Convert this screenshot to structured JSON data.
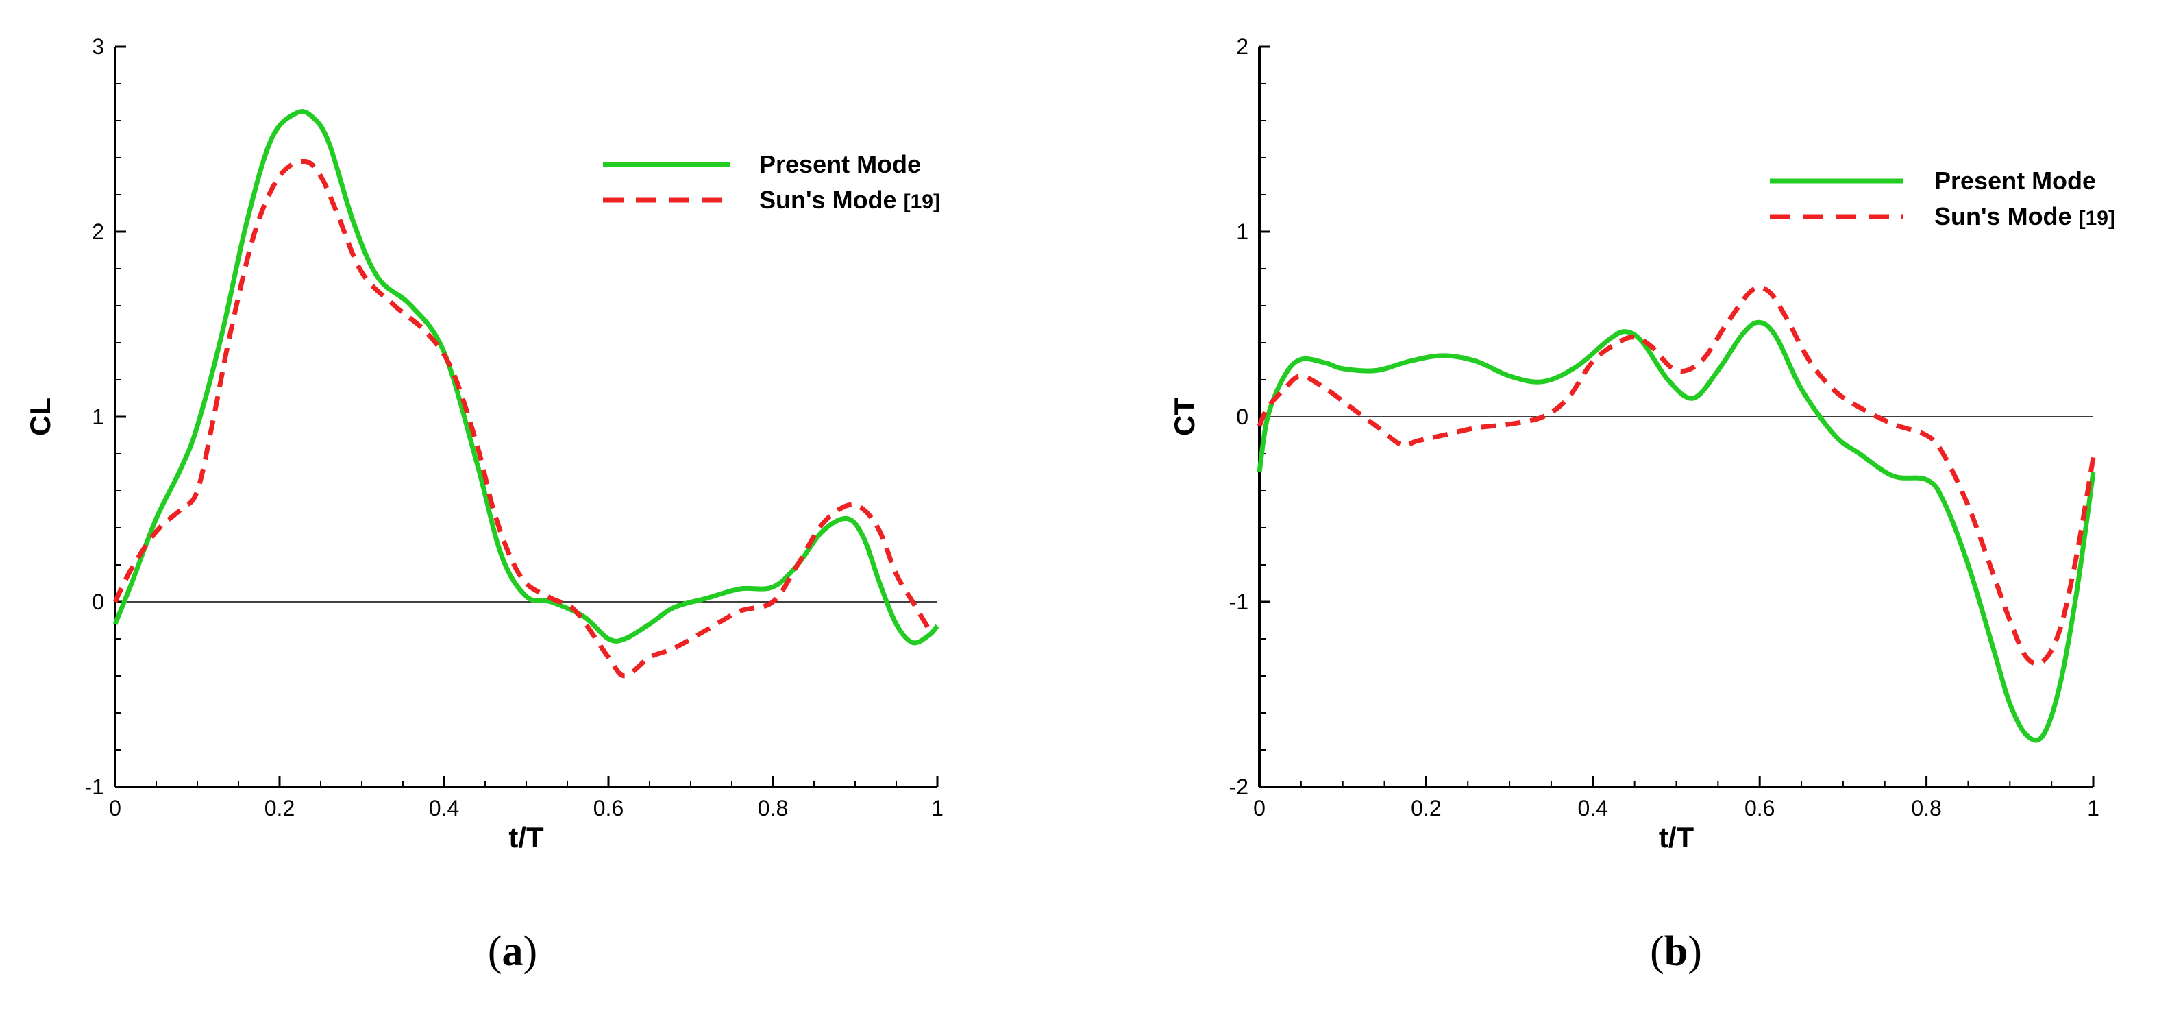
{
  "chart_data": [
    {
      "type": "line",
      "caption": "(a)",
      "caption_letter": "a",
      "xlabel": "t/T",
      "ylabel": "CL",
      "xlim": [
        0,
        1
      ],
      "ylim": [
        -1,
        3
      ],
      "x_ticks": [
        0,
        0.2,
        0.4,
        0.6,
        0.8,
        1
      ],
      "x_tick_labels": [
        "0",
        "0.2",
        "0.4",
        "0.6",
        "0.8",
        "1"
      ],
      "y_ticks": [
        -1,
        0,
        1,
        2,
        3
      ],
      "y_tick_labels": [
        "-1",
        "0",
        "1",
        "2",
        "3"
      ],
      "legend": "top-right",
      "series": [
        {
          "name": "Present Mode",
          "ref": "",
          "color": "#22cc22",
          "style": "solid",
          "x": [
            0,
            0.02,
            0.05,
            0.08,
            0.1,
            0.13,
            0.16,
            0.19,
            0.22,
            0.24,
            0.26,
            0.29,
            0.32,
            0.36,
            0.4,
            0.44,
            0.47,
            0.5,
            0.53,
            0.57,
            0.6,
            0.62,
            0.65,
            0.68,
            0.72,
            0.76,
            0.8,
            0.83,
            0.86,
            0.89,
            0.91,
            0.93,
            0.95,
            0.97,
            0.99,
            1.0
          ],
          "y": [
            -0.12,
            0.1,
            0.45,
            0.72,
            0.95,
            1.45,
            2.05,
            2.5,
            2.64,
            2.62,
            2.48,
            2.05,
            1.75,
            1.6,
            1.35,
            0.75,
            0.25,
            0.03,
            0.0,
            -0.08,
            -0.2,
            -0.2,
            -0.12,
            -0.03,
            0.02,
            0.07,
            0.08,
            0.2,
            0.38,
            0.45,
            0.35,
            0.1,
            -0.12,
            -0.22,
            -0.18,
            -0.13
          ]
        },
        {
          "name": "Sun's Mode",
          "ref": "[19]",
          "color": "#ee2222",
          "style": "dashed",
          "x": [
            0,
            0.02,
            0.05,
            0.08,
            0.1,
            0.12,
            0.14,
            0.17,
            0.2,
            0.23,
            0.25,
            0.27,
            0.3,
            0.34,
            0.38,
            0.41,
            0.44,
            0.46,
            0.48,
            0.5,
            0.53,
            0.56,
            0.6,
            0.62,
            0.65,
            0.68,
            0.72,
            0.76,
            0.8,
            0.83,
            0.86,
            0.89,
            0.91,
            0.93,
            0.95,
            0.97,
            0.99
          ],
          "y": [
            0.0,
            0.18,
            0.38,
            0.5,
            0.6,
            1.0,
            1.45,
            2.0,
            2.3,
            2.38,
            2.3,
            2.1,
            1.78,
            1.6,
            1.45,
            1.25,
            0.85,
            0.5,
            0.25,
            0.1,
            0.02,
            -0.05,
            -0.3,
            -0.4,
            -0.3,
            -0.25,
            -0.15,
            -0.05,
            0.0,
            0.2,
            0.42,
            0.52,
            0.5,
            0.38,
            0.15,
            0.0,
            -0.15
          ]
        }
      ]
    },
    {
      "type": "line",
      "caption": "(b)",
      "caption_letter": "b",
      "xlabel": "t/T",
      "ylabel": "CT",
      "xlim": [
        0,
        1
      ],
      "ylim": [
        -2,
        2
      ],
      "x_ticks": [
        0,
        0.2,
        0.4,
        0.6,
        0.8,
        1
      ],
      "x_tick_labels": [
        "0",
        "0.2",
        "0.4",
        "0.6",
        "0.8",
        "1"
      ],
      "y_ticks": [
        -2,
        -1,
        0,
        1,
        2
      ],
      "y_tick_labels": [
        "-2",
        "-1",
        "0",
        "1",
        "2"
      ],
      "legend": "top-right",
      "series": [
        {
          "name": "Present Mode",
          "ref": "",
          "color": "#22cc22",
          "style": "solid",
          "x": [
            0,
            0.01,
            0.03,
            0.05,
            0.08,
            0.1,
            0.14,
            0.18,
            0.22,
            0.26,
            0.3,
            0.34,
            0.38,
            0.42,
            0.44,
            0.46,
            0.49,
            0.52,
            0.55,
            0.58,
            0.6,
            0.62,
            0.65,
            0.69,
            0.72,
            0.76,
            0.8,
            0.82,
            0.85,
            0.88,
            0.9,
            0.92,
            0.94,
            0.96,
            0.98,
            1.0
          ],
          "y": [
            -0.3,
            0.0,
            0.22,
            0.31,
            0.29,
            0.26,
            0.25,
            0.3,
            0.33,
            0.3,
            0.22,
            0.19,
            0.27,
            0.42,
            0.46,
            0.4,
            0.2,
            0.1,
            0.25,
            0.45,
            0.51,
            0.43,
            0.15,
            -0.1,
            -0.2,
            -0.32,
            -0.34,
            -0.45,
            -0.8,
            -1.25,
            -1.55,
            -1.72,
            -1.72,
            -1.45,
            -0.95,
            -0.3
          ]
        },
        {
          "name": "Sun's Mode",
          "ref": "[19]",
          "color": "#ee2222",
          "style": "dashed",
          "x": [
            0,
            0.01,
            0.03,
            0.05,
            0.08,
            0.11,
            0.14,
            0.17,
            0.19,
            0.22,
            0.26,
            0.3,
            0.34,
            0.37,
            0.4,
            0.43,
            0.45,
            0.47,
            0.5,
            0.53,
            0.56,
            0.59,
            0.61,
            0.63,
            0.66,
            0.69,
            0.72,
            0.76,
            0.8,
            0.82,
            0.85,
            0.88,
            0.9,
            0.92,
            0.94,
            0.96,
            0.98,
            1.0
          ],
          "y": [
            -0.05,
            0.05,
            0.15,
            0.22,
            0.15,
            0.05,
            -0.05,
            -0.15,
            -0.13,
            -0.1,
            -0.06,
            -0.04,
            0.0,
            0.1,
            0.3,
            0.4,
            0.43,
            0.38,
            0.25,
            0.3,
            0.5,
            0.68,
            0.68,
            0.55,
            0.3,
            0.14,
            0.05,
            -0.04,
            -0.1,
            -0.2,
            -0.48,
            -0.85,
            -1.1,
            -1.3,
            -1.32,
            -1.15,
            -0.75,
            -0.22
          ]
        }
      ]
    }
  ]
}
